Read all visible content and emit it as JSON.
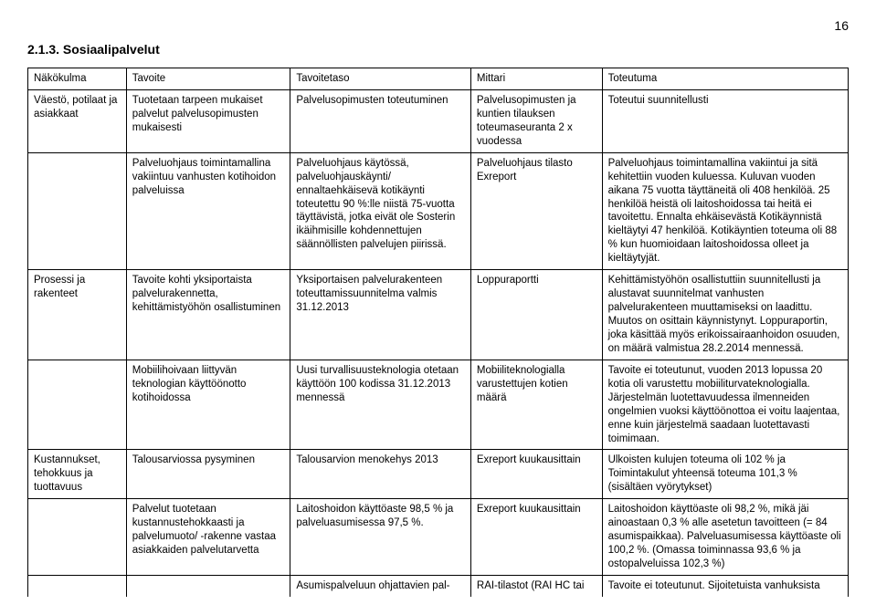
{
  "page_number": "16",
  "heading": "2.1.3. Sosiaalipalvelut",
  "columns": [
    "Näkökulma",
    "Tavoite",
    "Tavoitetaso",
    "Mittari",
    "Toteutuma"
  ],
  "rows": [
    {
      "c1": "Väestö, potilaat ja asiakkaat",
      "c2": "Tuotetaan tarpeen mukaiset palvelut palvelusopimusten mukaisesti",
      "c3": "Palvelusopimusten toteutuminen",
      "c4": "Palvelusopimusten ja kuntien tilauksen toteumaseuranta 2 x vuodessa",
      "c5": "Toteutui suunnitellusti"
    },
    {
      "c1": "",
      "c2": "Palveluohjaus toimintamallina vakiintuu vanhusten kotihoidon palveluissa",
      "c3": "Palveluohjaus käytössä, palveluohjauskäynti/ ennaltaehkäisevä kotikäynti toteutettu 90 %:lle niistä 75-vuotta täyttävistä, jotka eivät ole Sosterin ikäihmisille kohdennettujen säännöllisten palvelujen piirissä.",
      "c4": "Palveluohjaus tilasto Exreport",
      "c5": "Palveluohjaus toimintamallina vakiintui ja sitä kehitettiin vuoden kuluessa. Kuluvan vuoden aikana 75 vuotta täyttäneitä oli 408 henkilöä. 25 henkilöä heistä oli laitoshoidossa tai heitä ei tavoitettu. Ennalta ehkäisevästä Kotikäynnistä kieltäytyi 47 henkilöä. Kotikäyntien toteuma oli 88 % kun huomioidaan laitoshoidossa olleet ja kieltäytyjät."
    },
    {
      "c1": "Prosessi ja rakenteet",
      "c2": "Tavoite kohti yksiportaista palvelurakennetta, kehittämistyöhön osallistuminen",
      "c3": "Yksiportaisen palvelurakenteen toteuttamissuunnitelma valmis 31.12.2013",
      "c4": "Loppuraportti",
      "c5": "Kehittämistyöhön osallistuttiin suunnitellusti ja alustavat suunnitelmat vanhusten palvelurakenteen muuttamiseksi on laadittu. Muutos on osittain käynnistynyt. Loppuraportin, joka käsittää myös erikoissairaanhoidon osuuden, on määrä valmistua 28.2.2014 mennessä."
    },
    {
      "c1": "",
      "c2": "Mobiilihoivaan liittyvän teknologian käyttöönotto kotihoidossa",
      "c3": "Uusi turvallisuusteknologia otetaan käyttöön 100 kodissa 31.12.2013 mennessä",
      "c4": "Mobiiliteknologialla varustettujen kotien määrä",
      "c5": "Tavoite ei toteutunut, vuoden 2013 lopussa 20 kotia oli varustettu mobiiliturvateknologialla. Järjestelmän luotettavuudessa ilmenneiden ongelmien vuoksi käyttöönottoa ei voitu laajentaa, enne kuin järjestelmä saadaan luotettavasti toimimaan."
    },
    {
      "c1": "Kustannukset, tehokkuus ja tuottavuus",
      "c2": "Talousarviossa pysyminen",
      "c3": "Talousarvion menokehys 2013",
      "c4": "Exreport kuukausittain",
      "c5": "Ulkoisten kulujen toteuma oli 102 % ja Toimintakulut yhteensä toteuma 101,3 % (sisältäen vyörytykset)"
    },
    {
      "c1": "",
      "c2": "Palvelut tuotetaan kustannustehokkaasti ja palvelumuoto/ -rakenne vastaa asiakkaiden palvelutarvetta",
      "c3": "Laitoshoidon käyttöaste 98,5 % ja palveluasumisessa 97,5 %.",
      "c4": "Exreport kuukausittain",
      "c5": "Laitoshoidon käyttöaste oli 98,2 %, mikä jäi ainoastaan 0,3 % alle asetetun tavoitteen (= 84 asumispaikkaa).\nPalveluasumisessa käyttöaste oli 100,2 %. (Omassa toiminnassa 93,6 % ja ostopalveluissa 102,3 %)"
    },
    {
      "c1": "",
      "c2": "",
      "c3": "Asumispalveluun ohjattavien pal-",
      "c4": "RAI-tilastot (RAI HC tai",
      "c5": "Tavoite ei toteutunut. Sijoitetuista vanhuksista"
    }
  ]
}
